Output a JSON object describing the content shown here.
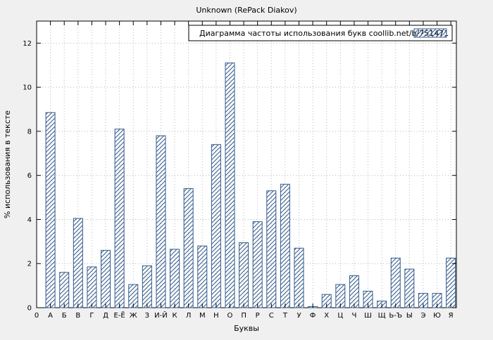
{
  "chart_data": {
    "type": "bar",
    "title": "Unknown (RePack Diakov)",
    "legend": "Диаграмма частоты использования букв coollib.net/b/751471",
    "xlabel": "Буквы",
    "ylabel": "% использования в тексте",
    "origin_label": "0",
    "categories": [
      "А",
      "Б",
      "В",
      "Г",
      "Д",
      "Е-Ё",
      "Ж",
      "З",
      "И-Й",
      "К",
      "Л",
      "М",
      "Н",
      "О",
      "П",
      "Р",
      "С",
      "Т",
      "У",
      "Ф",
      "Х",
      "Ц",
      "Ч",
      "Ш",
      "Щ",
      "Ь-Ъ",
      "Ы",
      "Э",
      "Ю",
      "Я"
    ],
    "values": [
      8.85,
      1.6,
      4.05,
      1.85,
      2.6,
      8.1,
      1.05,
      1.9,
      7.8,
      2.65,
      5.4,
      2.8,
      7.4,
      11.1,
      2.95,
      3.9,
      5.3,
      5.6,
      2.7,
      0.05,
      0.6,
      1.05,
      1.45,
      0.75,
      0.3,
      2.25,
      1.75,
      0.65,
      0.65,
      2.25
    ],
    "ylim": [
      0,
      13
    ],
    "yticks": [
      0,
      2,
      4,
      6,
      8,
      10,
      12
    ],
    "grid": "dotted both axes",
    "legend_position": "top-right inside plot",
    "colors": {
      "background": "#f0f0f0",
      "plot_background": "#ffffff",
      "bar": "#31598c",
      "grid": "#b8b8b8",
      "axis": "#000000"
    }
  }
}
